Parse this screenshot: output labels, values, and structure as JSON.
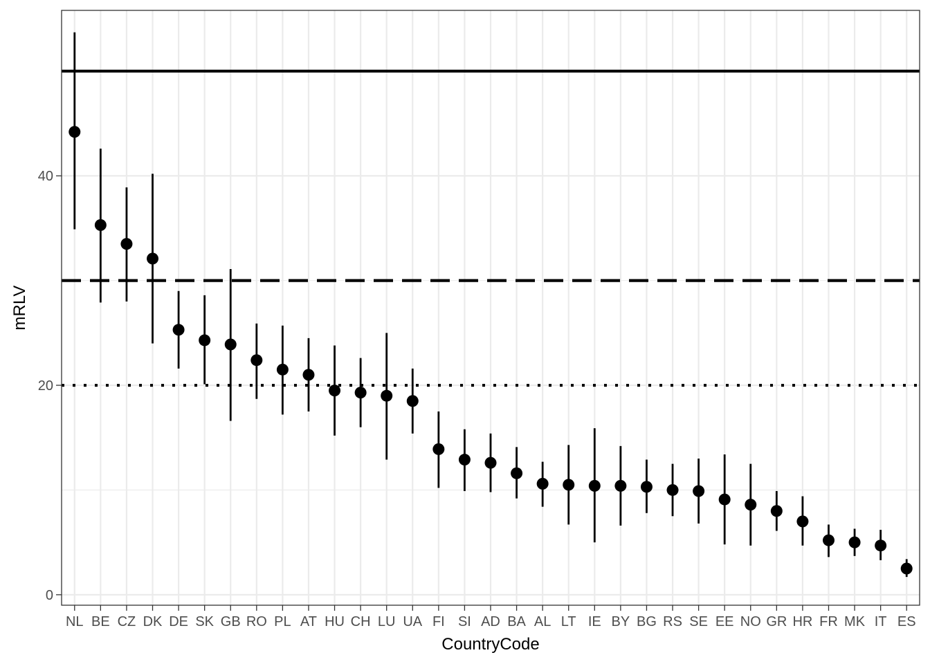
{
  "chart_data": {
    "type": "scatter",
    "subtype": "point-with-error-bars",
    "xlabel": "CountryCode",
    "ylabel": "mRLV",
    "ylim": [
      -1,
      55.8
    ],
    "yticks": [
      0,
      20,
      40
    ],
    "grid": true,
    "categories": [
      "NL",
      "BE",
      "CZ",
      "DK",
      "DE",
      "SK",
      "GB",
      "RO",
      "PL",
      "AT",
      "HU",
      "CH",
      "LU",
      "UA",
      "FI",
      "SI",
      "AD",
      "BA",
      "AL",
      "LT",
      "IE",
      "BY",
      "BG",
      "RS",
      "SE",
      "EE",
      "NO",
      "GR",
      "HR",
      "FR",
      "MK",
      "IT",
      "ES"
    ],
    "values": [
      44.2,
      35.3,
      33.5,
      32.1,
      25.3,
      24.3,
      23.9,
      22.4,
      21.5,
      21.0,
      19.5,
      19.3,
      19.0,
      18.5,
      13.9,
      12.9,
      12.6,
      11.6,
      10.6,
      10.5,
      10.4,
      10.4,
      10.3,
      10.0,
      9.9,
      9.1,
      8.6,
      8.0,
      7.0,
      5.2,
      5.0,
      4.7,
      2.5
    ],
    "lower": [
      34.9,
      27.9,
      28.0,
      24.0,
      21.6,
      20.1,
      16.6,
      18.7,
      17.2,
      17.5,
      15.2,
      16.0,
      12.9,
      15.4,
      10.2,
      9.9,
      9.8,
      9.2,
      8.4,
      6.7,
      5.0,
      6.6,
      7.8,
      7.5,
      6.8,
      4.8,
      4.7,
      6.1,
      4.7,
      3.6,
      3.7,
      3.3,
      1.7
    ],
    "upper": [
      53.7,
      42.6,
      38.9,
      40.2,
      29.0,
      28.6,
      31.1,
      25.9,
      25.7,
      24.5,
      23.8,
      22.6,
      25.0,
      21.6,
      17.5,
      15.8,
      15.4,
      14.1,
      12.7,
      14.3,
      15.9,
      14.2,
      12.9,
      12.5,
      13.0,
      13.4,
      12.5,
      9.9,
      9.4,
      6.7,
      6.3,
      6.2,
      3.4
    ],
    "reference_lines": [
      {
        "y": 50,
        "style": "solid"
      },
      {
        "y": 30,
        "style": "dashed"
      },
      {
        "y": 20,
        "style": "dotted"
      }
    ]
  }
}
